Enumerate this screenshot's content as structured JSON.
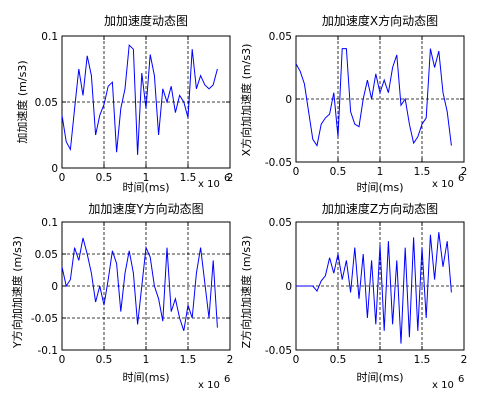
{
  "chart_data": [
    {
      "type": "line",
      "title": "加加速度动态图",
      "xlabel": "时间(ms)",
      "ylabel": "加加速度 (m/s3)",
      "x_multiplier": "x 10",
      "x_multiplier_exp": "6",
      "xlim": [
        0,
        2
      ],
      "ylim": [
        0,
        0.1
      ],
      "xticks": [
        0,
        0.5,
        1,
        1.5,
        2
      ],
      "xtick_labels": [
        "0",
        "0.5",
        "1",
        "1.5",
        "2"
      ],
      "yticks": [
        0,
        0.05,
        0.1
      ],
      "ytick_labels": [
        "0",
        "0.05",
        "0.1"
      ],
      "grid": "dashed",
      "line_color": "#0000ff",
      "series": [
        {
          "x": [
            0,
            0.05,
            0.1,
            0.15,
            0.2,
            0.25,
            0.3,
            0.35,
            0.4,
            0.45,
            0.5,
            0.55,
            0.6,
            0.65,
            0.7,
            0.75,
            0.8,
            0.85,
            0.9,
            0.95,
            1.0,
            1.05,
            1.1,
            1.15,
            1.2,
            1.25,
            1.3,
            1.35,
            1.4,
            1.45,
            1.5,
            1.55,
            1.6,
            1.65,
            1.7,
            1.75,
            1.8,
            1.85
          ],
          "y": [
            0.04,
            0.02,
            0.014,
            0.045,
            0.075,
            0.055,
            0.085,
            0.07,
            0.025,
            0.04,
            0.048,
            0.062,
            0.065,
            0.012,
            0.045,
            0.06,
            0.093,
            0.09,
            0.01,
            0.072,
            0.045,
            0.086,
            0.07,
            0.025,
            0.06,
            0.05,
            0.062,
            0.042,
            0.055,
            0.05,
            0.038,
            0.09,
            0.06,
            0.07,
            0.063,
            0.06,
            0.063,
            0.075
          ]
        }
      ]
    },
    {
      "type": "line",
      "title": "加加速度X方向动态图",
      "xlabel": "时间(ms)",
      "ylabel": "X方向加加速度 (m/s3)",
      "x_multiplier": "x 10",
      "x_multiplier_exp": "6",
      "xlim": [
        0,
        2
      ],
      "ylim": [
        -0.05,
        0.05
      ],
      "xticks": [
        0,
        0.5,
        1,
        1.5,
        2
      ],
      "xtick_labels": [
        "0",
        "0.5",
        "1",
        "1.5",
        "2"
      ],
      "yticks": [
        -0.05,
        0,
        0.05
      ],
      "ytick_labels": [
        "-0.05",
        "0",
        "0.05"
      ],
      "grid": "dashed",
      "line_color": "#0000ff",
      "series": [
        {
          "x": [
            0,
            0.05,
            0.1,
            0.15,
            0.2,
            0.25,
            0.3,
            0.35,
            0.4,
            0.45,
            0.5,
            0.55,
            0.6,
            0.65,
            0.7,
            0.75,
            0.8,
            0.85,
            0.9,
            0.95,
            1.0,
            1.05,
            1.1,
            1.15,
            1.2,
            1.25,
            1.3,
            1.35,
            1.4,
            1.45,
            1.5,
            1.55,
            1.6,
            1.65,
            1.7,
            1.75,
            1.8,
            1.85
          ],
          "y": [
            0.028,
            0.022,
            0.012,
            -0.01,
            -0.032,
            -0.037,
            -0.02,
            -0.015,
            -0.012,
            0.005,
            -0.03,
            0.04,
            0.04,
            -0.01,
            -0.02,
            -0.022,
            0.0,
            0.015,
            0.0,
            0.02,
            0.005,
            0.015,
            0.005,
            0.025,
            0.035,
            -0.005,
            0.0,
            -0.02,
            -0.035,
            -0.03,
            -0.02,
            -0.015,
            0.04,
            0.025,
            0.038,
            0.005,
            -0.01,
            -0.037
          ]
        }
      ]
    },
    {
      "type": "line",
      "title": "加加速度Y方向动态图",
      "xlabel": "时间(ms)",
      "ylabel": "Y方向加加速度 (m/s3)",
      "x_multiplier": "x 10",
      "x_multiplier_exp": "6",
      "xlim": [
        0,
        2
      ],
      "ylim": [
        -0.1,
        0.1
      ],
      "xticks": [
        0,
        0.5,
        1,
        1.5,
        2
      ],
      "xtick_labels": [
        "0",
        "0.5",
        "1",
        "1.5",
        "2"
      ],
      "yticks": [
        -0.1,
        -0.05,
        0,
        0.05,
        0.1
      ],
      "ytick_labels": [
        "-0.1",
        "-0.05",
        "0",
        "0.05",
        "0.1"
      ],
      "grid": "dashed",
      "line_color": "#0000ff",
      "series": [
        {
          "x": [
            0,
            0.05,
            0.1,
            0.15,
            0.2,
            0.25,
            0.3,
            0.35,
            0.4,
            0.45,
            0.5,
            0.55,
            0.6,
            0.65,
            0.7,
            0.75,
            0.8,
            0.85,
            0.9,
            0.95,
            1.0,
            1.05,
            1.1,
            1.15,
            1.2,
            1.25,
            1.3,
            1.35,
            1.4,
            1.45,
            1.5,
            1.55,
            1.6,
            1.65,
            1.7,
            1.75,
            1.8,
            1.85
          ],
          "y": [
            0.03,
            0.0,
            0.01,
            0.06,
            0.04,
            0.075,
            0.05,
            0.02,
            -0.025,
            0.0,
            -0.03,
            0.01,
            0.055,
            0.035,
            -0.04,
            0.02,
            0.055,
            0.02,
            -0.06,
            0.0,
            0.06,
            0.045,
            0.0,
            -0.02,
            -0.055,
            0.06,
            -0.04,
            -0.02,
            -0.05,
            -0.07,
            -0.03,
            -0.05,
            0.02,
            0.06,
            0.005,
            -0.05,
            0.04,
            -0.065
          ]
        }
      ]
    },
    {
      "type": "line",
      "title": "加加速度Z方向动态图",
      "xlabel": "时间(ms)",
      "ylabel": "Z方向加加速度 (m/s3)",
      "x_multiplier": "x 10",
      "x_multiplier_exp": "6",
      "xlim": [
        0,
        2
      ],
      "ylim": [
        -0.05,
        0.05
      ],
      "xticks": [
        0,
        0.5,
        1,
        1.5,
        2
      ],
      "xtick_labels": [
        "0",
        "0.5",
        "1",
        "1.5",
        "2"
      ],
      "yticks": [
        -0.05,
        0,
        0.05
      ],
      "ytick_labels": [
        "-0.05",
        "0",
        "0.05"
      ],
      "grid": "dashed",
      "line_color": "#0000ff",
      "series": [
        {
          "x": [
            0,
            0.05,
            0.1,
            0.15,
            0.2,
            0.25,
            0.3,
            0.35,
            0.4,
            0.45,
            0.5,
            0.55,
            0.6,
            0.65,
            0.7,
            0.75,
            0.8,
            0.85,
            0.9,
            0.95,
            1.0,
            1.05,
            1.1,
            1.15,
            1.2,
            1.25,
            1.3,
            1.35,
            1.4,
            1.45,
            1.5,
            1.55,
            1.6,
            1.65,
            1.7,
            1.75,
            1.8,
            1.85
          ],
          "y": [
            0.0,
            0.0,
            0.0,
            0.0,
            0.0,
            -0.004,
            0.004,
            0.008,
            0.022,
            0.01,
            0.025,
            0.005,
            0.02,
            -0.005,
            0.03,
            -0.01,
            0.025,
            -0.025,
            0.02,
            -0.03,
            0.032,
            -0.035,
            0.035,
            -0.03,
            0.02,
            -0.045,
            0.03,
            -0.04,
            0.038,
            -0.035,
            0.03,
            -0.025,
            0.04,
            0.005,
            0.042,
            0.015,
            0.035,
            -0.005
          ]
        }
      ]
    }
  ]
}
